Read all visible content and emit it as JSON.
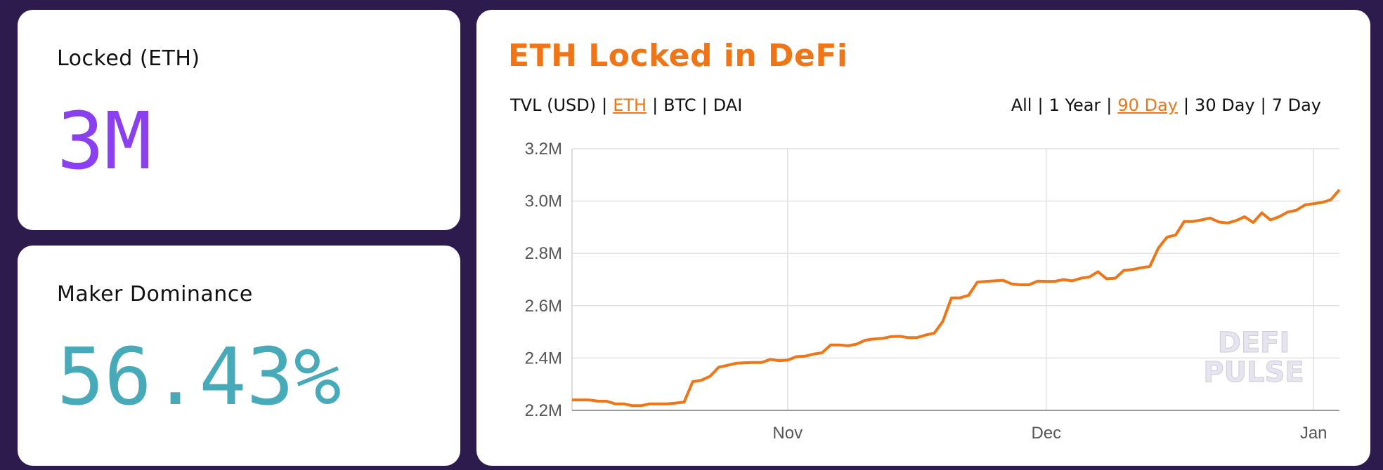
{
  "cards": {
    "locked": {
      "label": "Locked (ETH)",
      "value": "3M",
      "value_color": "#8a3ff0"
    },
    "dominance": {
      "label": "Maker Dominance",
      "value": "56.43%",
      "value_color": "#47aab8"
    }
  },
  "chart": {
    "title": "ETH Locked in DeFi",
    "metric_toggles": [
      {
        "label": "TVL (USD)",
        "active": false
      },
      {
        "label": "ETH",
        "active": true
      },
      {
        "label": "BTC",
        "active": false
      },
      {
        "label": "DAI",
        "active": false
      }
    ],
    "range_toggles": [
      {
        "label": "All",
        "active": false
      },
      {
        "label": "1 Year",
        "active": false
      },
      {
        "label": "90 Day",
        "active": true
      },
      {
        "label": "30 Day",
        "active": false
      },
      {
        "label": "7 Day",
        "active": false
      }
    ],
    "watermark": [
      "DEFI",
      "PULSE"
    ],
    "accent_color": "#f07516"
  },
  "chart_data": {
    "type": "line",
    "x_unit": "day",
    "xlim": [
      "2019-10-07",
      "2020-01-04"
    ],
    "ylim": [
      2200000,
      3200000
    ],
    "y_ticks": [
      2200000,
      2400000,
      2600000,
      2800000,
      3000000,
      3200000
    ],
    "y_tick_labels": [
      "2.2M",
      "2.4M",
      "2.6M",
      "2.8M",
      "3.0M",
      "3.2M"
    ],
    "x_tick_dates": [
      "2019-11-01",
      "2019-12-01",
      "2020-01-01"
    ],
    "x_tick_labels": [
      "Nov",
      "Dec",
      "Jan"
    ],
    "grid": true,
    "series": [
      {
        "color": "#f07516",
        "x": [
          "2019-10-07",
          "2019-10-09",
          "2019-10-10",
          "2019-10-11",
          "2019-10-12",
          "2019-10-13",
          "2019-10-14",
          "2019-10-15",
          "2019-10-16",
          "2019-10-18",
          "2019-10-19",
          "2019-10-20",
          "2019-10-21",
          "2019-10-22",
          "2019-10-23",
          "2019-10-24",
          "2019-10-25",
          "2019-10-26",
          "2019-10-27",
          "2019-10-28",
          "2019-10-29",
          "2019-10-30",
          "2019-10-31",
          "2019-11-01",
          "2019-11-02",
          "2019-11-03",
          "2019-11-04",
          "2019-11-05",
          "2019-11-06",
          "2019-11-07",
          "2019-11-08",
          "2019-11-09",
          "2019-11-10",
          "2019-11-11",
          "2019-11-12",
          "2019-11-13",
          "2019-11-14",
          "2019-11-15",
          "2019-11-16",
          "2019-11-17",
          "2019-11-18",
          "2019-11-19",
          "2019-11-20",
          "2019-11-21",
          "2019-11-22",
          "2019-11-23",
          "2019-11-24",
          "2019-11-25",
          "2019-11-26",
          "2019-11-27",
          "2019-11-28",
          "2019-11-29",
          "2019-11-30",
          "2019-12-01",
          "2019-12-02",
          "2019-12-03",
          "2019-12-04",
          "2019-12-05",
          "2019-12-06",
          "2019-12-07",
          "2019-12-08",
          "2019-12-09",
          "2019-12-10",
          "2019-12-11",
          "2019-12-12",
          "2019-12-13",
          "2019-12-14",
          "2019-12-15",
          "2019-12-16",
          "2019-12-17",
          "2019-12-18",
          "2019-12-19",
          "2019-12-20",
          "2019-12-21",
          "2019-12-22",
          "2019-12-23",
          "2019-12-24",
          "2019-12-25",
          "2019-12-26",
          "2019-12-27",
          "2019-12-28",
          "2019-12-29",
          "2019-12-30",
          "2019-12-31",
          "2020-01-01",
          "2020-01-02",
          "2020-01-03",
          "2020-01-04"
        ],
        "y": [
          2240000,
          2240000,
          2235000,
          2235000,
          2225000,
          2225000,
          2218000,
          2218000,
          2225000,
          2225000,
          2228000,
          2232000,
          2310000,
          2315000,
          2330000,
          2365000,
          2372000,
          2380000,
          2382000,
          2383000,
          2383000,
          2395000,
          2390000,
          2392000,
          2405000,
          2407000,
          2415000,
          2420000,
          2450000,
          2450000,
          2447000,
          2453000,
          2468000,
          2473000,
          2475000,
          2482000,
          2483000,
          2478000,
          2478000,
          2488000,
          2495000,
          2540000,
          2630000,
          2630000,
          2640000,
          2690000,
          2693000,
          2695000,
          2697000,
          2683000,
          2680000,
          2680000,
          2694000,
          2693000,
          2693000,
          2700000,
          2695000,
          2705000,
          2710000,
          2730000,
          2703000,
          2705000,
          2735000,
          2738000,
          2745000,
          2750000,
          2820000,
          2862000,
          2870000,
          2922000,
          2922000,
          2928000,
          2935000,
          2920000,
          2916000,
          2925000,
          2940000,
          2918000,
          2955000,
          2928000,
          2940000,
          2958000,
          2965000,
          2985000,
          2990000,
          2995000,
          3005000,
          3043000
        ]
      }
    ]
  }
}
